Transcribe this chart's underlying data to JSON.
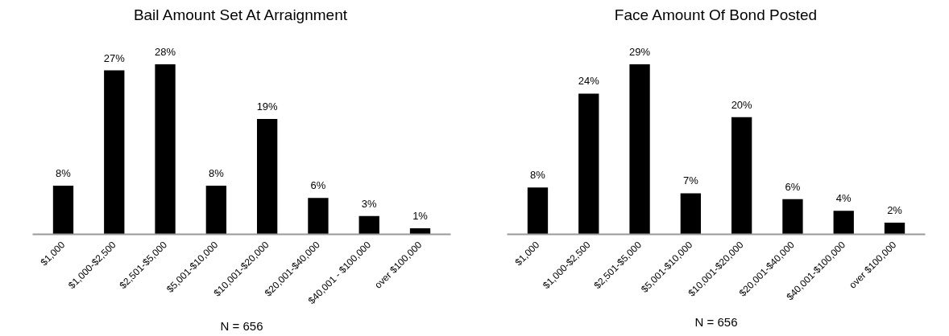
{
  "chart_data": [
    {
      "type": "bar",
      "title": "Bail Amount Set At Arraignment",
      "categories": [
        "$1,000",
        "$1,000-$2,500",
        "$2,501-$5,000",
        "$5,001-$10,000",
        "$10,001-$20,000",
        "$20,001-$40,000",
        "$40,001 - $100,000",
        "over $100,000"
      ],
      "values": [
        8,
        27,
        28,
        8,
        19,
        6,
        3,
        1
      ],
      "value_labels": [
        "8%",
        "27%",
        "28%",
        "8%",
        "19%",
        "6%",
        "3%",
        "1%"
      ],
      "color": "#000000",
      "annotations": [
        "N = 656"
      ]
    },
    {
      "type": "bar",
      "title": "Face Amount Of Bond Posted",
      "categories": [
        "$1,000",
        "$1,000-$2,500",
        "$2,501-$5,000",
        "$5,001-$10,000",
        "$10,001-$20,000",
        "$20,001-$40,000",
        "$40,001-$100,000",
        "over $100,000"
      ],
      "values": [
        8,
        24,
        29,
        7,
        20,
        6,
        4,
        2
      ],
      "value_labels": [
        "8%",
        "24%",
        "29%",
        "7%",
        "20%",
        "6%",
        "4%",
        "2%"
      ],
      "color": "#000000",
      "annotations": [
        "N = 656"
      ]
    }
  ]
}
